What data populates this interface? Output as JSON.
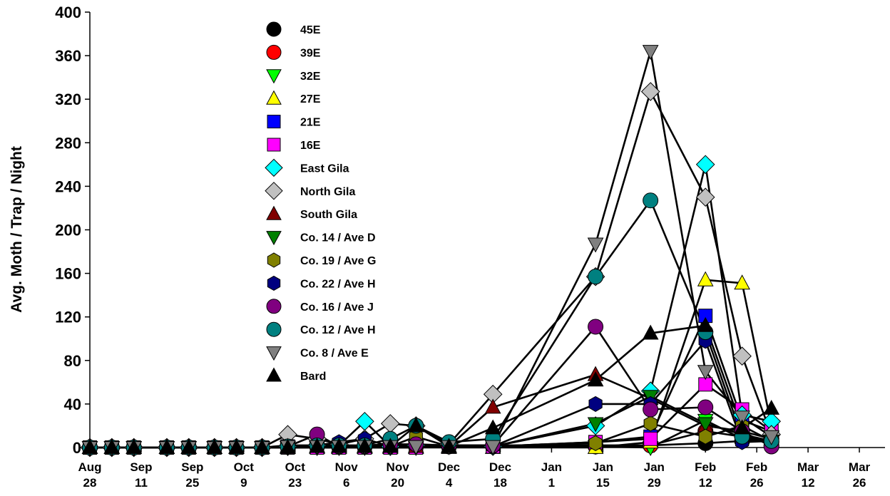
{
  "chart_data": {
    "type": "line",
    "ylabel": "Avg. Moth / Trap / Night",
    "xlabel": "",
    "ylim": [
      0,
      400
    ],
    "yticks": [
      0,
      40,
      80,
      120,
      160,
      200,
      240,
      280,
      320,
      360,
      400
    ],
    "xlim": [
      0,
      217
    ],
    "x_ticks": [
      {
        "x": 0,
        "l1": "Aug",
        "l2": "28"
      },
      {
        "x": 14,
        "l1": "Sep",
        "l2": "11"
      },
      {
        "x": 28,
        "l1": "Sep",
        "l2": "25"
      },
      {
        "x": 42,
        "l1": "Oct",
        "l2": "9"
      },
      {
        "x": 56,
        "l1": "Oct",
        "l2": "23"
      },
      {
        "x": 70,
        "l1": "Nov",
        "l2": "6"
      },
      {
        "x": 84,
        "l1": "Nov",
        "l2": "20"
      },
      {
        "x": 98,
        "l1": "Dec",
        "l2": "4"
      },
      {
        "x": 112,
        "l1": "Dec",
        "l2": "18"
      },
      {
        "x": 126,
        "l1": "Jan",
        "l2": "1"
      },
      {
        "x": 140,
        "l1": "Jan",
        "l2": "15"
      },
      {
        "x": 154,
        "l1": "Jan",
        "l2": "29"
      },
      {
        "x": 168,
        "l1": "Feb",
        "l2": "12"
      },
      {
        "x": 182,
        "l1": "Feb",
        "l2": "26"
      },
      {
        "x": 196,
        "l1": "Mar",
        "l2": "12"
      },
      {
        "x": 210,
        "l1": "Mar",
        "l2": "26"
      }
    ],
    "grid": false,
    "legend_position": "top-left",
    "x": [
      0,
      6,
      12,
      21,
      27,
      34,
      40,
      47,
      54,
      62,
      68,
      75,
      82,
      89,
      98,
      110,
      138,
      153,
      168,
      178,
      186
    ],
    "series": [
      {
        "name": "45E",
        "marker": "circle",
        "color": "#000000",
        "values": [
          0,
          0,
          0,
          0,
          0,
          0,
          0,
          0,
          2,
          2,
          1,
          2,
          3,
          2,
          2,
          2,
          2,
          2,
          4,
          6,
          8
        ]
      },
      {
        "name": "39E",
        "marker": "circle",
        "color": "#ff0000",
        "values": [
          0,
          0,
          0,
          0,
          0,
          0,
          0,
          0,
          1,
          1,
          1,
          1,
          1,
          1,
          1,
          1,
          1,
          2,
          15,
          10,
          5
        ]
      },
      {
        "name": "32E",
        "marker": "triangle-down",
        "color": "#00ff00",
        "values": [
          0,
          0,
          0,
          0,
          0,
          0,
          0,
          0,
          0,
          0,
          0,
          0,
          0,
          0,
          1,
          1,
          1,
          0,
          25,
          8,
          5
        ]
      },
      {
        "name": "27E",
        "marker": "triangle-up",
        "color": "#ffff00",
        "values": [
          0,
          0,
          0,
          0,
          0,
          0,
          0,
          0,
          0,
          0,
          0,
          0,
          0,
          0,
          0,
          0,
          0,
          5,
          154,
          151,
          20
        ]
      },
      {
        "name": "21E",
        "marker": "square",
        "color": "#0000ff",
        "values": [
          0,
          0,
          0,
          0,
          0,
          0,
          0,
          0,
          1,
          1,
          2,
          1,
          1,
          1,
          2,
          1,
          5,
          10,
          121,
          25,
          15
        ]
      },
      {
        "name": "16E",
        "marker": "square",
        "color": "#ff00ff",
        "values": [
          0,
          0,
          0,
          0,
          0,
          0,
          0,
          0,
          0,
          0,
          0,
          0,
          0,
          0,
          1,
          1,
          5,
          8,
          58,
          35,
          15
        ]
      },
      {
        "name": "East Gila",
        "marker": "diamond",
        "color": "#00ffff",
        "values": [
          0,
          0,
          0,
          0,
          0,
          0,
          0,
          0,
          1,
          2,
          2,
          24,
          1,
          2,
          2,
          1,
          20,
          52,
          260,
          30,
          24
        ]
      },
      {
        "name": "North Gila",
        "marker": "diamond",
        "color": "#c0c0c0",
        "values": [
          0,
          0,
          0,
          0,
          0,
          0,
          0,
          0,
          12,
          8,
          3,
          8,
          22,
          20,
          3,
          49,
          157,
          327,
          230,
          84,
          12
        ]
      },
      {
        "name": "South Gila",
        "marker": "triangle-up",
        "color": "#800000",
        "values": [
          0,
          0,
          0,
          0,
          0,
          0,
          0,
          0,
          1,
          1,
          1,
          1,
          1,
          1,
          1,
          37,
          67,
          45,
          20,
          15,
          8
        ]
      },
      {
        "name": "Co. 14 / Ave D",
        "marker": "triangle-down",
        "color": "#008000",
        "values": [
          0,
          0,
          0,
          0,
          0,
          0,
          0,
          0,
          0,
          0,
          0,
          1,
          1,
          1,
          1,
          1,
          22,
          47,
          22,
          12,
          6
        ]
      },
      {
        "name": "Co. 19 / Ave G",
        "marker": "hexagon",
        "color": "#808000",
        "values": [
          0,
          0,
          0,
          0,
          0,
          0,
          0,
          0,
          1,
          2,
          1,
          1,
          1,
          10,
          1,
          1,
          4,
          22,
          10,
          20,
          6
        ]
      },
      {
        "name": "Co. 22 / Ave H",
        "marker": "hexagon",
        "color": "#000080",
        "values": [
          0,
          0,
          0,
          0,
          0,
          0,
          0,
          0,
          1,
          2,
          5,
          8,
          1,
          3,
          1,
          1,
          40,
          40,
          98,
          5,
          6
        ]
      },
      {
        "name": "Co. 16 / Ave J",
        "marker": "circle",
        "color": "#800080",
        "values": [
          0,
          0,
          0,
          0,
          0,
          0,
          0,
          0,
          1,
          12,
          1,
          1,
          3,
          3,
          2,
          2,
          111,
          35,
          37,
          15,
          1
        ]
      },
      {
        "name": "Co. 12 / Ave H",
        "marker": "circle",
        "color": "#008080",
        "values": [
          0,
          0,
          0,
          0,
          0,
          0,
          0,
          0,
          1,
          2,
          2,
          2,
          8,
          20,
          5,
          8,
          157,
          227,
          106,
          10,
          6
        ]
      },
      {
        "name": "Co. 8 / Ave E",
        "marker": "triangle-down",
        "color": "#808080",
        "values": [
          0,
          0,
          0,
          0,
          0,
          0,
          0,
          0,
          1,
          1,
          1,
          1,
          1,
          1,
          1,
          1,
          187,
          364,
          70,
          28,
          10
        ]
      },
      {
        "name": "Bard",
        "marker": "triangle-up",
        "color": "#000000",
        "values": [
          0,
          0,
          0,
          0,
          0,
          0,
          0,
          0,
          0,
          1,
          1,
          1,
          1,
          20,
          1,
          18,
          62,
          105,
          112,
          18,
          36
        ]
      }
    ]
  }
}
